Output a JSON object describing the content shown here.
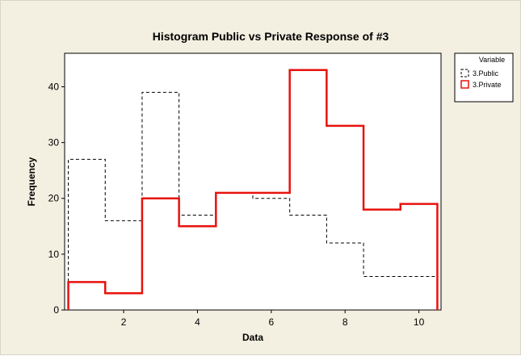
{
  "chart_data": {
    "type": "histogram",
    "title": "Histogram Public vs Private Response of #3",
    "xlabel": "Data",
    "ylabel": "Frequency",
    "xlim": [
      0.4,
      10.6
    ],
    "ylim": [
      0,
      46
    ],
    "xticks": [
      2,
      4,
      6,
      8,
      10
    ],
    "yticks": [
      0,
      10,
      20,
      30,
      40
    ],
    "bin_edges": [
      0.5,
      1.5,
      2.5,
      3.5,
      4.5,
      5.5,
      6.5,
      7.5,
      8.5,
      9.5,
      10.5
    ],
    "legend": {
      "title": "Variable",
      "position": "top-right"
    },
    "series": [
      {
        "name": "3.Public",
        "style": "dashed",
        "color": "#000000",
        "values": [
          27,
          16,
          39,
          17,
          21,
          20,
          17,
          12,
          6,
          6
        ]
      },
      {
        "name": "3.Private",
        "style": "solid",
        "color": "#e8120c",
        "values": [
          5,
          3,
          20,
          15,
          21,
          21,
          43,
          33,
          18,
          19
        ]
      }
    ]
  },
  "colors": {
    "background": "#f3efe1",
    "plot_background": "#ffffff",
    "private": "#e8120c",
    "public": "#000000"
  }
}
